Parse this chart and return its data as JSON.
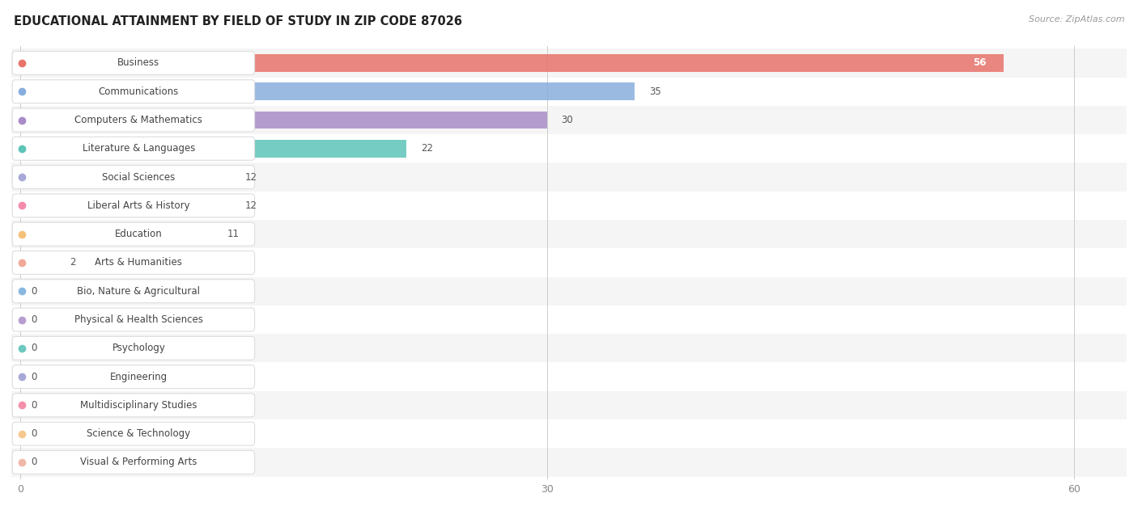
{
  "title": "EDUCATIONAL ATTAINMENT BY FIELD OF STUDY IN ZIP CODE 87026",
  "source": "Source: ZipAtlas.com",
  "categories": [
    "Business",
    "Communications",
    "Computers & Mathematics",
    "Literature & Languages",
    "Social Sciences",
    "Liberal Arts & History",
    "Education",
    "Arts & Humanities",
    "Bio, Nature & Agricultural",
    "Physical & Health Sciences",
    "Psychology",
    "Engineering",
    "Multidisciplinary Studies",
    "Science & Technology",
    "Visual & Performing Arts"
  ],
  "values": [
    56,
    35,
    30,
    22,
    12,
    12,
    11,
    2,
    0,
    0,
    0,
    0,
    0,
    0,
    0
  ],
  "bar_colors": [
    "#E8736A",
    "#88AEDD",
    "#A98BC8",
    "#5DC4B8",
    "#A8A8D8",
    "#F48BAA",
    "#F5C07A",
    "#F0A898",
    "#88B8E0",
    "#B89ED0",
    "#6DC8C0",
    "#A8A8D8",
    "#F490AA",
    "#F5C890",
    "#F0B8A8"
  ],
  "xlim": [
    0,
    60
  ],
  "xticks": [
    0,
    30,
    60
  ],
  "background_color": "#ffffff",
  "row_colors": [
    "#f5f5f5",
    "#ffffff"
  ],
  "title_fontsize": 10.5,
  "label_fontsize": 8.5,
  "value_fontsize": 8.5
}
